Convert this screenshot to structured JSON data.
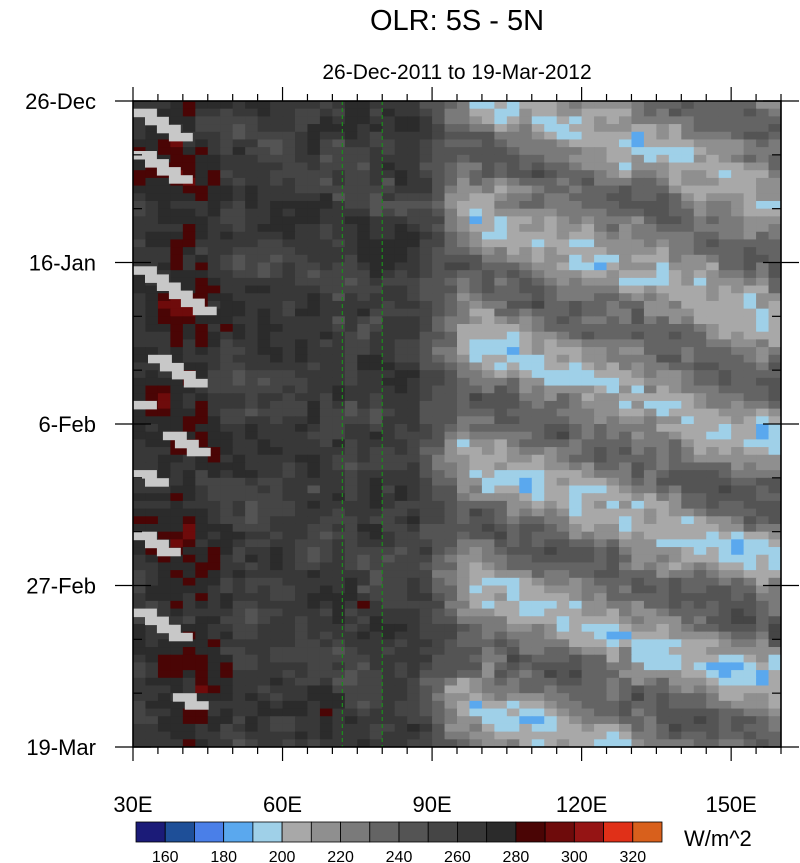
{
  "chart_data": {
    "type": "heatmap",
    "title": "OLR: 5S - 5N",
    "subtitle": "26-Dec-2011 to 19-Mar-2012",
    "x_tick_labels": [
      "30E",
      "60E",
      "90E",
      "120E",
      "150E"
    ],
    "x_ticks": [
      30,
      60,
      90,
      120,
      150
    ],
    "xlim": [
      30,
      160
    ],
    "y_tick_labels": [
      "26-Dec",
      "16-Jan",
      "6-Feb",
      "27-Feb",
      "19-Mar"
    ],
    "y_ticks": [
      "2011-12-26",
      "2012-01-16",
      "2012-02-06",
      "2012-02-27",
      "2012-03-19"
    ],
    "ylim": [
      "2011-12-26",
      "2012-03-19"
    ],
    "reference_lines_x": [
      72,
      80
    ],
    "reference_line_color": "#1e8a1e",
    "colorbar": {
      "unit_label": "W/m^2",
      "tick_labels": [
        "160",
        "180",
        "200",
        "220",
        "240",
        "260",
        "280",
        "300",
        "320"
      ],
      "levels": [
        160,
        170,
        180,
        190,
        200,
        210,
        220,
        230,
        240,
        250,
        260,
        270,
        280,
        290,
        300,
        310,
        320
      ],
      "colors": [
        "#1b1b78",
        "#1e4f98",
        "#4a7fe8",
        "#5aa8ee",
        "#9fd0e8",
        "#a8a8a8",
        "#8f8f8f",
        "#7a7a7a",
        "#646464",
        "#545454",
        "#454545",
        "#383838",
        "#2b2b2b",
        "#4a0505",
        "#6e0b0b",
        "#951414",
        "#e03018",
        "#d8601c"
      ]
    }
  }
}
